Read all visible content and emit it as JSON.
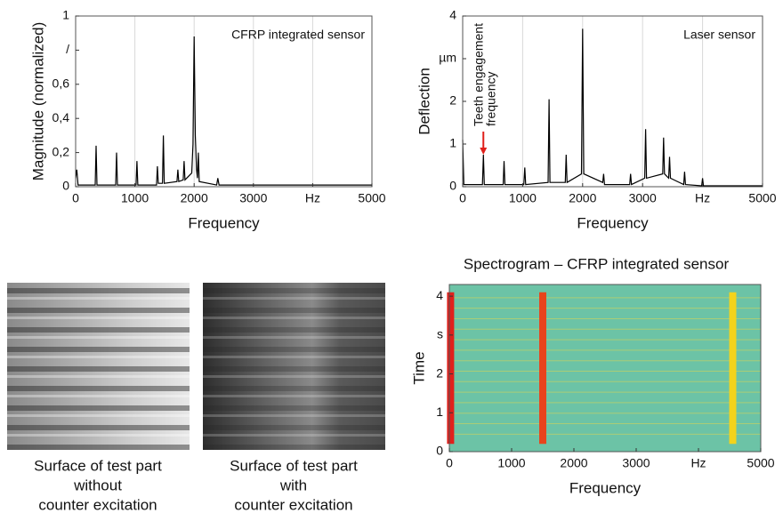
{
  "chart_data": [
    {
      "type": "line",
      "label": "CFRP integrated sensor",
      "x_label": "Frequency",
      "y_label": "Magnitude (normalized)",
      "x": [
        0,
        20,
        40,
        330,
        345,
        360,
        675,
        690,
        705,
        1020,
        1035,
        1050,
        1365,
        1380,
        1395,
        1465,
        1480,
        1495,
        1710,
        1725,
        1740,
        1815,
        1830,
        1845,
        1960,
        1980,
        2000,
        2020,
        2040,
        2055,
        2070,
        2085,
        2380,
        2400,
        2420,
        3000,
        4000,
        5000
      ],
      "values": [
        0.05,
        0.1,
        0.01,
        0.01,
        0.24,
        0.01,
        0.01,
        0.2,
        0.01,
        0.01,
        0.15,
        0.01,
        0.01,
        0.12,
        0.02,
        0.02,
        0.3,
        0.02,
        0.03,
        0.1,
        0.03,
        0.04,
        0.15,
        0.04,
        0.08,
        0.25,
        0.88,
        0.3,
        0.1,
        0.05,
        0.2,
        0.03,
        0.01,
        0.05,
        0.01,
        0.01,
        0.01,
        0.01
      ],
      "color": "#000000",
      "xlim": [
        0,
        5000
      ],
      "ylim": [
        0,
        1
      ],
      "xticks": [
        0,
        1000,
        2000,
        3000,
        {
          "value": 4000,
          "label": "Hz"
        },
        5000
      ],
      "yticks": [
        0,
        {
          "value": 0.2,
          "label": "0,2"
        },
        {
          "value": 0.4,
          "label": "0,4"
        },
        {
          "value": 0.6,
          "label": "0,6"
        },
        {
          "value": 0.8,
          "label": "/"
        },
        1
      ],
      "grid": true
    },
    {
      "type": "line",
      "label": "Laser sensor",
      "x_label": "Frequency",
      "y_label": "Deflection",
      "annotation": {
        "text": "Teeth engagement frequency",
        "x": 345
      },
      "x": [
        0,
        20,
        330,
        345,
        360,
        675,
        690,
        705,
        1020,
        1035,
        1050,
        1425,
        1440,
        1455,
        1710,
        1725,
        1740,
        1980,
        2000,
        2020,
        2335,
        2350,
        2365,
        2785,
        2800,
        2815,
        3035,
        3050,
        3065,
        3335,
        3350,
        3365,
        3435,
        3450,
        3465,
        3685,
        3700,
        3715,
        3985,
        4000,
        4015,
        5000
      ],
      "values": [
        1.1,
        0.05,
        0.05,
        0.75,
        0.05,
        0.05,
        0.6,
        0.05,
        0.05,
        0.45,
        0.05,
        0.1,
        2.05,
        0.1,
        0.1,
        0.75,
        0.1,
        0.3,
        3.7,
        0.3,
        0.1,
        0.3,
        0.05,
        0.05,
        0.3,
        0.05,
        0.2,
        1.35,
        0.2,
        0.3,
        1.15,
        0.3,
        0.2,
        0.7,
        0.2,
        0.05,
        0.35,
        0.05,
        0.02,
        0.2,
        0.02,
        0.02
      ],
      "color": "#000000",
      "xlim": [
        0,
        5000
      ],
      "ylim": [
        0,
        4
      ],
      "xticks": [
        0,
        1000,
        2000,
        3000,
        {
          "value": 4000,
          "label": "Hz"
        },
        5000
      ],
      "yticks": [
        0,
        1,
        2,
        {
          "value": 3,
          "label": "µm"
        },
        4
      ],
      "grid": true
    },
    {
      "type": "spectrogram",
      "title": "Spectrogram – CFRP integrated sensor",
      "x_label": "Frequency",
      "y_label": "Time",
      "x": [
        20,
        1500,
        4550
      ],
      "colors": [
        "#e0201b",
        "#e8441c",
        "#f3d31c"
      ],
      "background": "#6cc3a6",
      "xlim": [
        0,
        5000
      ],
      "ylim": [
        0,
        4.3
      ],
      "xticks": [
        0,
        1000,
        2000,
        3000,
        {
          "value": 4000,
          "label": "Hz"
        },
        5000
      ],
      "yticks": [
        0,
        1,
        2,
        {
          "value": 3,
          "label": "s"
        },
        4
      ],
      "grid": false
    }
  ],
  "images": [
    {
      "caption": [
        "Surface of test part",
        "without",
        "counter excitation"
      ]
    },
    {
      "caption": [
        "Surface of test part",
        "with",
        "counter excitation"
      ]
    }
  ]
}
